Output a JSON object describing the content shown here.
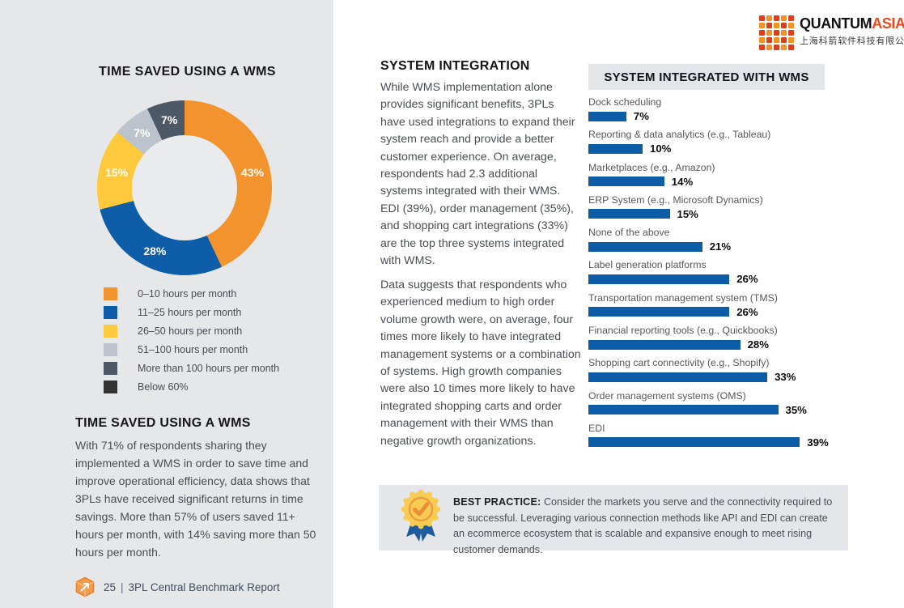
{
  "brand": {
    "name_primary": "QUANTUM",
    "name_secondary": "ASIA",
    "name_chinese": "上海科箭软件科技有限公司",
    "accent_orange": "#E8491F",
    "logo_dot_colors": [
      "#DD3E1E",
      "#F39220"
    ]
  },
  "left_panel": {
    "section_title": "TIME SAVED USING A WMS",
    "section_body": "With 71% of respondents sharing they implemented a WMS in order to save time and improve operational efficiency, data shows that 3PLs have received significant returns in time savings. More than 57% of users saved 11+ hours per month, with 14% saving more than 50 hours per month."
  },
  "system_integration": {
    "title": "SYSTEM INTEGRATION",
    "paragraphs": [
      "While WMS implementation alone provides significant benefits, 3PLs have used integrations to expand their system reach and provide a better customer experience. On average, respondents had 2.3 additional systems integrated with their WMS. EDI (39%), order management (35%), and shopping cart integrations (33%) are the top three systems integrated with WMS.",
      "Data suggests that respondents who experienced medium to high order volume growth were, on average, four times more likely to have integrated management systems or a combination of systems. High growth companies were also 10 times more likely to have integrated shopping carts and order management with their WMS than negative growth organizations."
    ]
  },
  "best_practice": {
    "label": "BEST PRACTICE:",
    "text": "Consider the markets you serve and the connectivity required to be successful. Leveraging various connection methods like API and EDI can create an ecommerce ecosystem that is scalable and expansive enough to meet rising customer demands."
  },
  "footer": {
    "page_number": "25",
    "divider": "|",
    "report_title": "3PL Central Benchmark Report"
  },
  "chart_data": [
    {
      "type": "pie",
      "variant": "donut",
      "title": "TIME SAVED USING A WMS",
      "value_suffix": "%",
      "legend_position": "below",
      "segments": [
        {
          "label": "0–10 hours per month",
          "value": 43,
          "color": "#F3932E"
        },
        {
          "label": "11–25 hours per month",
          "value": 28,
          "color": "#0E5DA8"
        },
        {
          "label": "26–50 hours per month",
          "value": 15,
          "color": "#FEC93D"
        },
        {
          "label": "51–100 hours per month",
          "value": 7,
          "color": "#BCC3CD"
        },
        {
          "label": "More than 100 hours per month",
          "value": 7,
          "color": "#4D5866"
        }
      ],
      "legend_extra": [
        {
          "label": "Below 60%",
          "color": "#333333"
        }
      ]
    },
    {
      "type": "bar",
      "orientation": "horizontal",
      "title": "SYSTEM INTEGRATED WITH WMS",
      "categories": [
        "Dock scheduling",
        "Reporting & data analytics (e.g., Tableau)",
        "Marketplaces (e.g., Amazon)",
        "ERP System (e.g., Microsoft Dynamics)",
        "None of the above",
        "Label generation platforms",
        "Transportation management system (TMS)",
        "Financial reporting tools (e.g., Quickbooks)",
        "Shopping cart connectivity (e.g., Shopify)",
        "Order management systems (OMS)",
        "EDI"
      ],
      "values": [
        7,
        10,
        14,
        15,
        21,
        26,
        26,
        28,
        33,
        35,
        39
      ],
      "value_suffix": "%",
      "bar_color": "#0D5CA8",
      "xlim": [
        0,
        42
      ],
      "grid": false,
      "value_labels": "end-of-bar"
    }
  ]
}
